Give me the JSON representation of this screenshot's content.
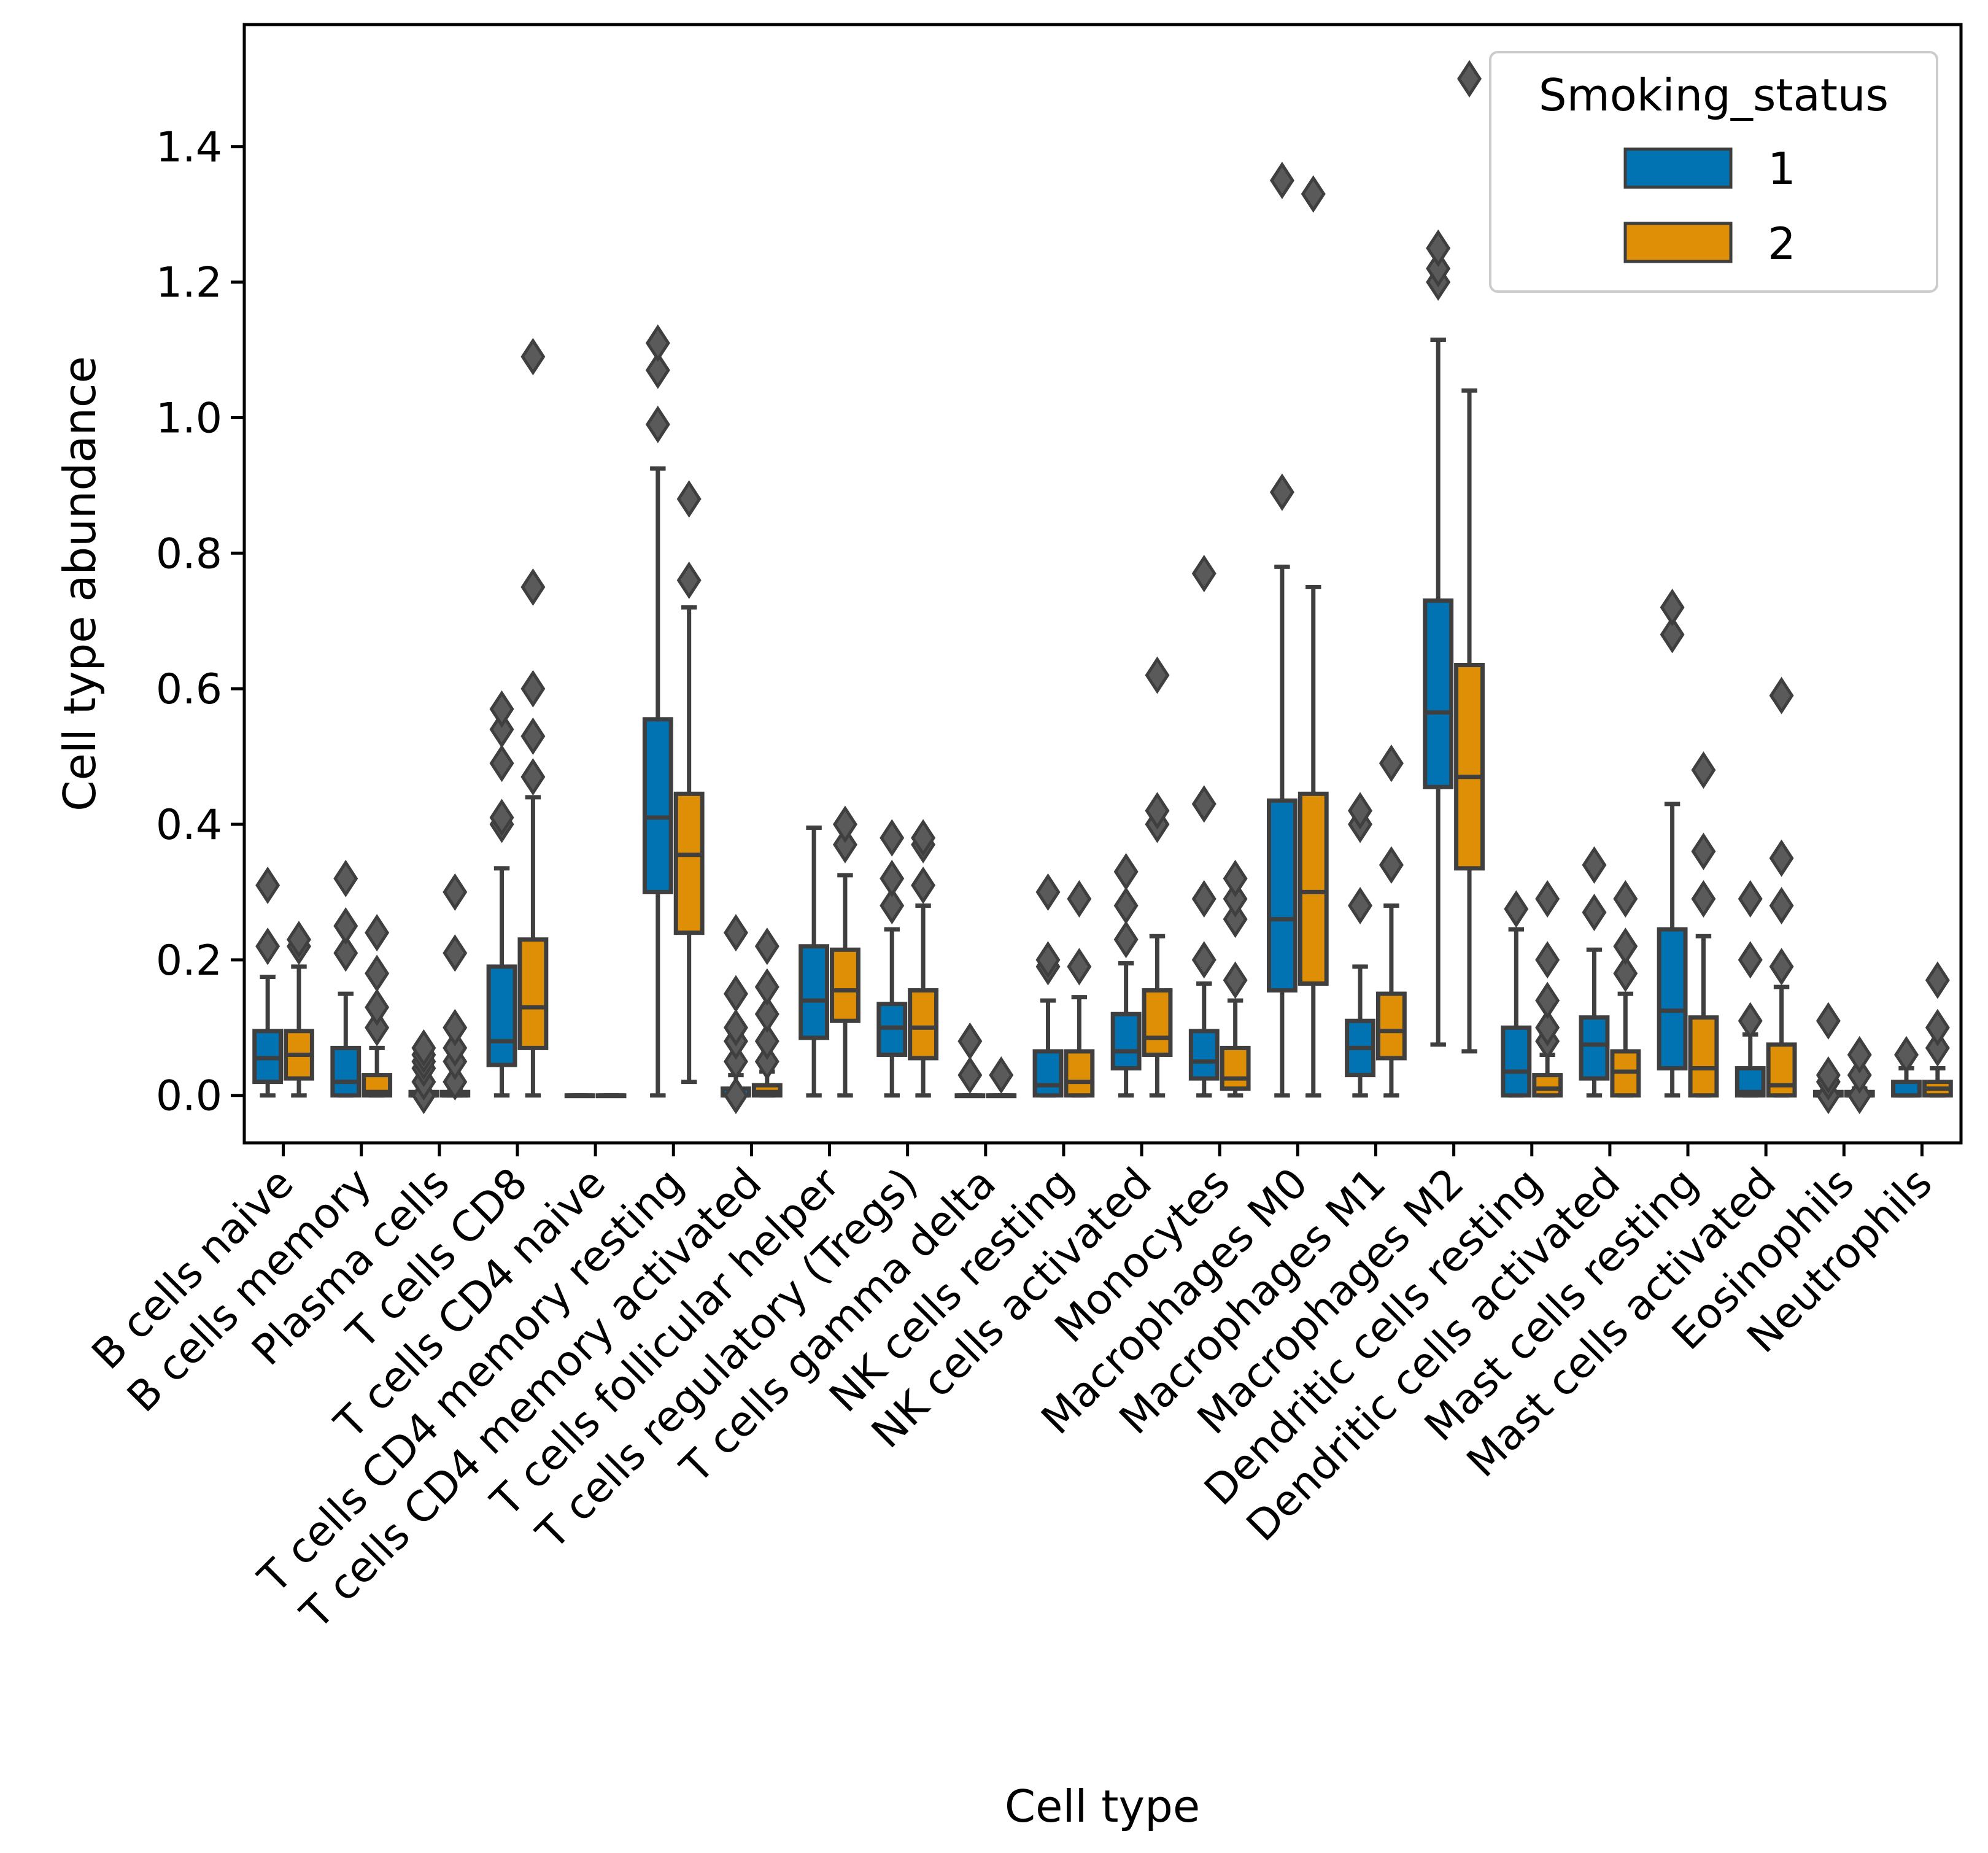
{
  "chart_data": {
    "type": "boxplot",
    "xlabel": "Cell type",
    "ylabel": "Cell type abundance",
    "ylim": [
      -0.07,
      1.58
    ],
    "yticks": [
      0.0,
      0.2,
      0.4,
      0.6,
      0.8,
      1.0,
      1.2,
      1.4
    ],
    "ytick_labels": [
      "0.0",
      "0.2",
      "0.4",
      "0.6",
      "0.8",
      "1.0",
      "1.2",
      "1.4"
    ],
    "legend": {
      "title": "Smoking_status",
      "placement": "top-right",
      "entries": [
        {
          "label": "1",
          "color": "#0173b2"
        },
        {
          "label": "2",
          "color": "#de8f05"
        }
      ]
    },
    "categories": [
      "B cells naive",
      "B cells memory",
      "Plasma cells",
      "T cells CD8",
      "T cells CD4 naive",
      "T cells CD4 memory resting",
      "T cells CD4 memory activated",
      "T cells follicular helper",
      "T cells regulatory (Tregs)",
      "T cells gamma delta",
      "NK cells resting",
      "NK cells activated",
      "Monocytes",
      "Macrophages M0",
      "Macrophages M1",
      "Macrophages M2",
      "Dendritic cells resting",
      "Dendritic cells activated",
      "Mast cells resting",
      "Mast cells activated",
      "Eosinophils",
      "Neutrophils"
    ],
    "series": [
      {
        "name": "1",
        "color": "#0173b2",
        "boxes": [
          {
            "whislo": 0.0,
            "q1": 0.02,
            "med": 0.055,
            "q3": 0.095,
            "whishi": 0.175,
            "fliers": [
              0.22,
              0.31
            ]
          },
          {
            "whislo": 0.0,
            "q1": 0.0,
            "med": 0.02,
            "q3": 0.07,
            "whishi": 0.15,
            "fliers": [
              0.21,
              0.25,
              0.32
            ]
          },
          {
            "whislo": 0.0,
            "q1": 0.0,
            "med": 0.0,
            "q3": 0.005,
            "whishi": 0.01,
            "fliers": [
              0.0,
              0.02,
              0.04,
              0.05,
              0.06,
              0.07
            ]
          },
          {
            "whislo": 0.0,
            "q1": 0.045,
            "med": 0.08,
            "q3": 0.19,
            "whishi": 0.335,
            "fliers": [
              0.4,
              0.41,
              0.49,
              0.54,
              0.57
            ]
          },
          {
            "whislo": 0.0,
            "q1": 0.0,
            "med": 0.0,
            "q3": 0.0,
            "whishi": 0.0,
            "fliers": []
          },
          {
            "whislo": 0.0,
            "q1": 0.3,
            "med": 0.41,
            "q3": 0.555,
            "whishi": 0.925,
            "fliers": [
              0.99,
              1.07,
              1.11
            ]
          },
          {
            "whislo": 0.0,
            "q1": 0.0,
            "med": 0.0,
            "q3": 0.01,
            "whishi": 0.03,
            "fliers": [
              0.0,
              0.05,
              0.08,
              0.1,
              0.15,
              0.24
            ]
          },
          {
            "whislo": 0.0,
            "q1": 0.085,
            "med": 0.14,
            "q3": 0.22,
            "whishi": 0.395,
            "fliers": []
          },
          {
            "whislo": 0.0,
            "q1": 0.06,
            "med": 0.1,
            "q3": 0.135,
            "whishi": 0.245,
            "fliers": [
              0.28,
              0.32,
              0.38
            ]
          },
          {
            "whislo": 0.0,
            "q1": 0.0,
            "med": 0.0,
            "q3": 0.0,
            "whishi": 0.0,
            "fliers": [
              0.03,
              0.08
            ]
          },
          {
            "whislo": 0.0,
            "q1": 0.0,
            "med": 0.015,
            "q3": 0.065,
            "whishi": 0.14,
            "fliers": [
              0.19,
              0.2,
              0.3
            ]
          },
          {
            "whislo": 0.0,
            "q1": 0.04,
            "med": 0.065,
            "q3": 0.12,
            "whishi": 0.195,
            "fliers": [
              0.23,
              0.28,
              0.33
            ]
          },
          {
            "whislo": 0.0,
            "q1": 0.025,
            "med": 0.05,
            "q3": 0.095,
            "whishi": 0.165,
            "fliers": [
              0.2,
              0.29,
              0.43,
              0.77
            ]
          },
          {
            "whislo": 0.0,
            "q1": 0.155,
            "med": 0.26,
            "q3": 0.435,
            "whishi": 0.78,
            "fliers": [
              0.89,
              1.35
            ]
          },
          {
            "whislo": 0.0,
            "q1": 0.03,
            "med": 0.07,
            "q3": 0.11,
            "whishi": 0.19,
            "fliers": [
              0.28,
              0.4,
              0.42
            ]
          },
          {
            "whislo": 0.075,
            "q1": 0.455,
            "med": 0.565,
            "q3": 0.73,
            "whishi": 1.115,
            "fliers": [
              1.2,
              1.22,
              1.25
            ]
          },
          {
            "whislo": 0.0,
            "q1": 0.0,
            "med": 0.035,
            "q3": 0.1,
            "whishi": 0.245,
            "fliers": [
              0.275
            ]
          },
          {
            "whislo": 0.0,
            "q1": 0.025,
            "med": 0.075,
            "q3": 0.115,
            "whishi": 0.215,
            "fliers": [
              0.27,
              0.34
            ]
          },
          {
            "whislo": 0.0,
            "q1": 0.04,
            "med": 0.125,
            "q3": 0.245,
            "whishi": 0.43,
            "fliers": [
              0.68,
              0.72
            ]
          },
          {
            "whislo": 0.0,
            "q1": 0.0,
            "med": 0.005,
            "q3": 0.04,
            "whishi": 0.09,
            "fliers": [
              0.11,
              0.2,
              0.29
            ]
          },
          {
            "whislo": 0.0,
            "q1": 0.0,
            "med": 0.0,
            "q3": 0.005,
            "whishi": 0.01,
            "fliers": [
              0.0,
              0.02,
              0.03,
              0.11
            ]
          },
          {
            "whislo": 0.0,
            "q1": 0.0,
            "med": 0.0,
            "q3": 0.02,
            "whishi": 0.04,
            "fliers": [
              0.06
            ]
          }
        ]
      },
      {
        "name": "2",
        "color": "#de8f05",
        "boxes": [
          {
            "whislo": 0.0,
            "q1": 0.025,
            "med": 0.06,
            "q3": 0.095,
            "whishi": 0.19,
            "fliers": [
              0.22,
              0.23
            ]
          },
          {
            "whislo": 0.0,
            "q1": 0.0,
            "med": 0.005,
            "q3": 0.03,
            "whishi": 0.07,
            "fliers": [
              0.1,
              0.13,
              0.18,
              0.24
            ]
          },
          {
            "whislo": 0.0,
            "q1": 0.0,
            "med": 0.0,
            "q3": 0.005,
            "whishi": 0.01,
            "fliers": [
              0.02,
              0.05,
              0.07,
              0.1,
              0.21,
              0.3
            ]
          },
          {
            "whislo": 0.0,
            "q1": 0.07,
            "med": 0.13,
            "q3": 0.23,
            "whishi": 0.44,
            "fliers": [
              0.47,
              0.53,
              0.6,
              0.75,
              1.09
            ]
          },
          {
            "whislo": 0.0,
            "q1": 0.0,
            "med": 0.0,
            "q3": 0.0,
            "whishi": 0.0,
            "fliers": []
          },
          {
            "whislo": 0.02,
            "q1": 0.24,
            "med": 0.355,
            "q3": 0.445,
            "whishi": 0.72,
            "fliers": [
              0.76,
              0.88
            ]
          },
          {
            "whislo": 0.0,
            "q1": 0.0,
            "med": 0.005,
            "q3": 0.015,
            "whishi": 0.035,
            "fliers": [
              0.05,
              0.08,
              0.12,
              0.16,
              0.22
            ]
          },
          {
            "whislo": 0.0,
            "q1": 0.11,
            "med": 0.155,
            "q3": 0.215,
            "whishi": 0.325,
            "fliers": [
              0.37,
              0.4
            ]
          },
          {
            "whislo": 0.0,
            "q1": 0.055,
            "med": 0.1,
            "q3": 0.155,
            "whishi": 0.28,
            "fliers": [
              0.31,
              0.37,
              0.38
            ]
          },
          {
            "whislo": 0.0,
            "q1": 0.0,
            "med": 0.0,
            "q3": 0.0,
            "whishi": 0.0,
            "fliers": [
              0.03
            ]
          },
          {
            "whislo": 0.0,
            "q1": 0.0,
            "med": 0.02,
            "q3": 0.065,
            "whishi": 0.145,
            "fliers": [
              0.19,
              0.29
            ]
          },
          {
            "whislo": 0.0,
            "q1": 0.06,
            "med": 0.085,
            "q3": 0.155,
            "whishi": 0.235,
            "fliers": [
              0.4,
              0.42,
              0.62
            ]
          },
          {
            "whislo": 0.0,
            "q1": 0.01,
            "med": 0.025,
            "q3": 0.07,
            "whishi": 0.14,
            "fliers": [
              0.17,
              0.26,
              0.29,
              0.32
            ]
          },
          {
            "whislo": 0.0,
            "q1": 0.165,
            "med": 0.3,
            "q3": 0.445,
            "whishi": 0.75,
            "fliers": [
              1.33
            ]
          },
          {
            "whislo": 0.0,
            "q1": 0.055,
            "med": 0.095,
            "q3": 0.15,
            "whishi": 0.28,
            "fliers": [
              0.34,
              0.49
            ]
          },
          {
            "whislo": 0.065,
            "q1": 0.335,
            "med": 0.47,
            "q3": 0.635,
            "whishi": 1.04,
            "fliers": [
              1.5
            ]
          },
          {
            "whislo": 0.0,
            "q1": 0.0,
            "med": 0.01,
            "q3": 0.03,
            "whishi": 0.06,
            "fliers": [
              0.08,
              0.1,
              0.14,
              0.2,
              0.29
            ]
          },
          {
            "whislo": 0.0,
            "q1": 0.0,
            "med": 0.035,
            "q3": 0.065,
            "whishi": 0.15,
            "fliers": [
              0.18,
              0.22,
              0.29
            ]
          },
          {
            "whislo": 0.0,
            "q1": 0.0,
            "med": 0.04,
            "q3": 0.115,
            "whishi": 0.235,
            "fliers": [
              0.29,
              0.36,
              0.48
            ]
          },
          {
            "whislo": 0.0,
            "q1": 0.0,
            "med": 0.015,
            "q3": 0.075,
            "whishi": 0.16,
            "fliers": [
              0.19,
              0.28,
              0.35,
              0.59
            ]
          },
          {
            "whislo": 0.0,
            "q1": 0.0,
            "med": 0.0,
            "q3": 0.005,
            "whishi": 0.01,
            "fliers": [
              0.0,
              0.03,
              0.06
            ]
          },
          {
            "whislo": 0.0,
            "q1": 0.0,
            "med": 0.01,
            "q3": 0.02,
            "whishi": 0.04,
            "fliers": [
              0.07,
              0.1,
              0.17
            ]
          }
        ]
      }
    ]
  }
}
